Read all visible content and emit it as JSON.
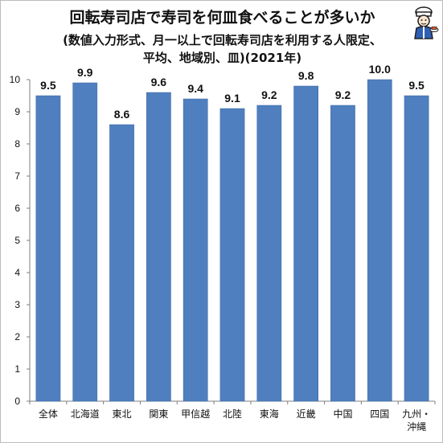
{
  "title": {
    "line1": "回転寿司店で寿司を何皿食べることが多いか",
    "line2": "(数値入力形式、月一以上で回転寿司店を利用する人限定、",
    "line3": "平均、地域別、皿)(2021年)"
  },
  "mascot_icon": "sushi-chef-icon",
  "colors": {
    "bar": "#4f7fbe",
    "bar_edge": "#3c6aa8",
    "axis": "#7f7f7f",
    "text": "#111111"
  },
  "chart_data": {
    "type": "bar",
    "categories": [
      "全体",
      "北海道",
      "東北",
      "関東",
      "甲信越",
      "北陸",
      "東海",
      "近畿",
      "中国",
      "四国",
      "九州・沖縄"
    ],
    "values": [
      9.5,
      9.9,
      8.6,
      9.6,
      9.4,
      9.1,
      9.2,
      9.8,
      9.2,
      10.0,
      9.5
    ],
    "value_labels": [
      "9.5",
      "9.9",
      "8.6",
      "9.6",
      "9.4",
      "9.1",
      "9.2",
      "9.8",
      "9.2",
      "10.0",
      "9.5"
    ],
    "ylim": [
      0,
      10
    ],
    "yticks": [
      0,
      1,
      2,
      3,
      4,
      5,
      6,
      7,
      8,
      9,
      10
    ],
    "grid": false,
    "xlabel": "",
    "ylabel": ""
  }
}
